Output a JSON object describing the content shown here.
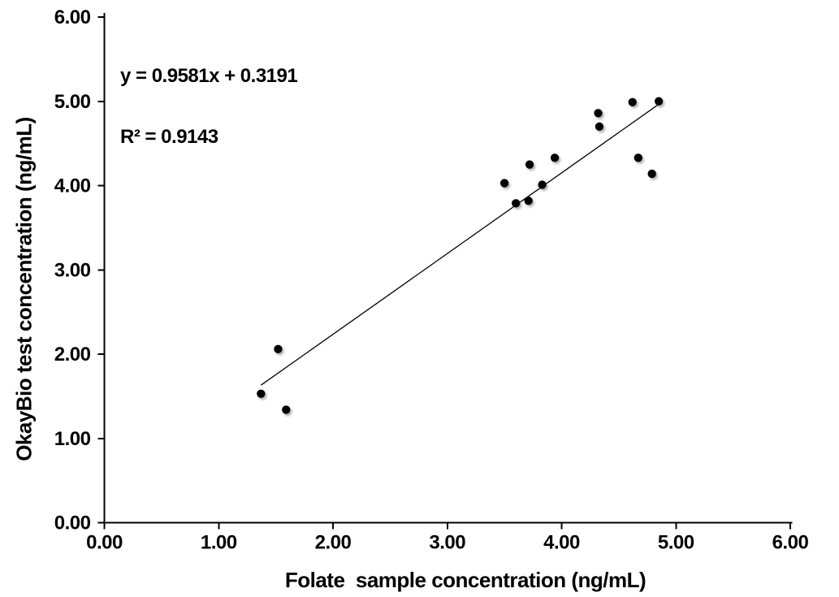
{
  "chart_data": {
    "type": "scatter",
    "title": "",
    "xlabel": "Folate  sample concentration (ng/mL)",
    "ylabel": "OkayBio test concentration (ng/mL)",
    "xlim": [
      0,
      6
    ],
    "ylim": [
      0,
      6
    ],
    "grid": false,
    "legend": false,
    "x_axis": {
      "tick_values": [
        0,
        1,
        2,
        3,
        4,
        5,
        6
      ],
      "tick_labels": [
        "0.00",
        "1.00",
        "2.00",
        "3.00",
        "4.00",
        "5.00",
        "6.00"
      ]
    },
    "y_axis": {
      "tick_values": [
        0,
        1,
        2,
        3,
        4,
        5,
        6
      ],
      "tick_labels": [
        "0.00",
        "1.00",
        "2.00",
        "3.00",
        "4.00",
        "5.00",
        "6.00"
      ]
    },
    "points": [
      {
        "x": 1.37,
        "y": 1.53
      },
      {
        "x": 1.52,
        "y": 2.06
      },
      {
        "x": 1.59,
        "y": 1.34
      },
      {
        "x": 3.5,
        "y": 4.03
      },
      {
        "x": 3.6,
        "y": 3.79
      },
      {
        "x": 3.71,
        "y": 3.82
      },
      {
        "x": 3.72,
        "y": 4.25
      },
      {
        "x": 3.83,
        "y": 4.01
      },
      {
        "x": 3.94,
        "y": 4.33
      },
      {
        "x": 4.32,
        "y": 4.86
      },
      {
        "x": 4.33,
        "y": 4.7
      },
      {
        "x": 4.62,
        "y": 4.99
      },
      {
        "x": 4.67,
        "y": 4.33
      },
      {
        "x": 4.79,
        "y": 4.14
      },
      {
        "x": 4.85,
        "y": 5.0
      }
    ],
    "trendline": {
      "slope": 0.9581,
      "intercept": 0.3191,
      "x_start": 1.37,
      "x_end": 4.85
    },
    "annotation": {
      "equation": "y = 0.9581x + 0.3191",
      "r_squared": "R² = 0.9143"
    },
    "colors": {
      "marker": "#000000",
      "trendline": "#000000",
      "axis": "#000000",
      "text": "#000000",
      "background": "#ffffff",
      "marker_shadow": "#8c8c8c"
    }
  }
}
